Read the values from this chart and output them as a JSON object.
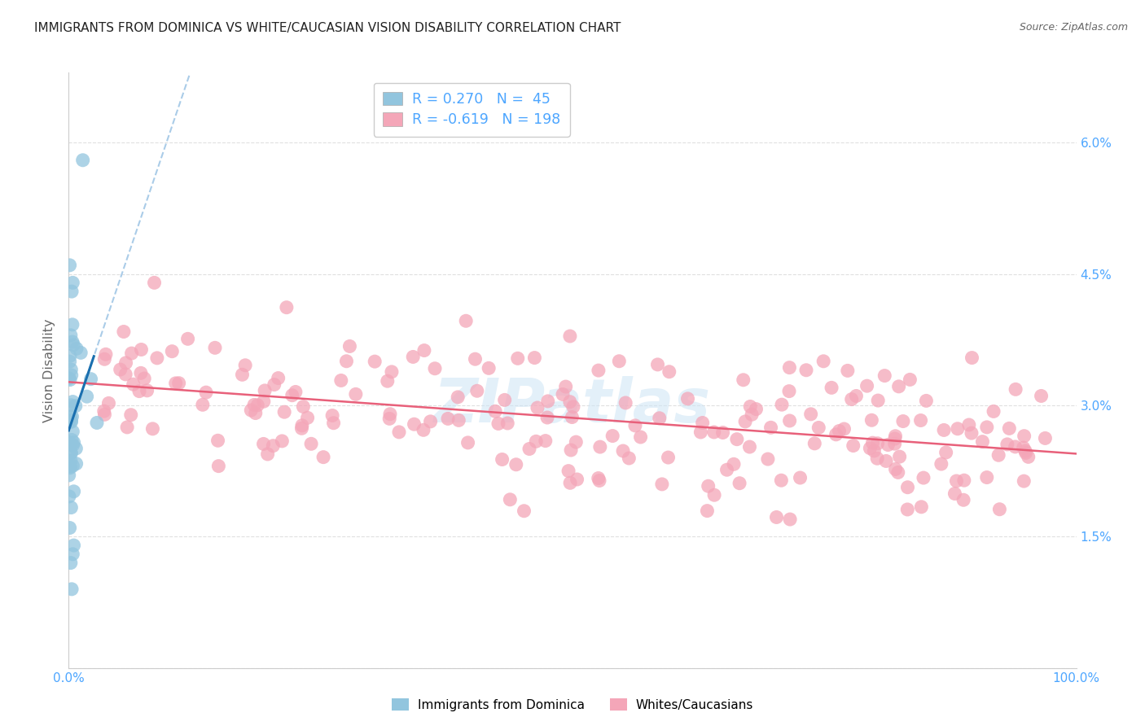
{
  "title": "IMMIGRANTS FROM DOMINICA VS WHITE/CAUCASIAN VISION DISABILITY CORRELATION CHART",
  "source": "Source: ZipAtlas.com",
  "ylabel": "Vision Disability",
  "r_blue": 0.27,
  "n_blue": 45,
  "r_pink": -0.619,
  "n_pink": 198,
  "blue_color": "#92c5de",
  "pink_color": "#f4a6b8",
  "blue_line_color": "#1a6faf",
  "pink_line_color": "#e8607a",
  "blue_dash_color": "#aacce8",
  "xlim": [
    0,
    1.0
  ],
  "ylim": [
    0,
    0.068
  ],
  "ytick_positions": [
    0.0,
    0.015,
    0.03,
    0.045,
    0.06
  ],
  "ytick_labels": [
    "",
    "1.5%",
    "3.0%",
    "4.5%",
    "6.0%"
  ],
  "xtick_positions": [
    0.0,
    0.1,
    0.2,
    0.3,
    0.4,
    0.5,
    0.6,
    0.7,
    0.8,
    0.9,
    1.0
  ],
  "xtick_labels": [
    "0.0%",
    "",
    "",
    "",
    "",
    "",
    "",
    "",
    "",
    "",
    "100.0%"
  ],
  "watermark": "ZIPatlas",
  "legend_label_blue": "Immigrants from Dominica",
  "legend_label_pink": "Whites/Caucasians",
  "background_color": "#ffffff",
  "axis_color": "#4da6ff",
  "grid_color": "#e0e0e0"
}
